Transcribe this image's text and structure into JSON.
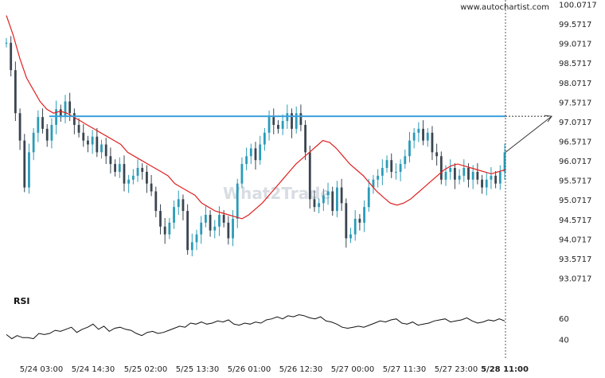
{
  "site_label": "www.autochartist.com",
  "watermark": "What2Trade",
  "colors": {
    "candle": "#2b9bb8",
    "candle_dark": "#3a4550",
    "moving_average": "#e02020",
    "resistance": "#3aa0dc",
    "rsi": "#111111",
    "projection": "#333333"
  },
  "chart_data": {
    "type": "line",
    "price_panel": {
      "ylim": [
        92.9,
        100.3
      ],
      "y_ticks": [
        "100.0717",
        "99.5717",
        "99.0717",
        "98.5717",
        "98.0717",
        "97.5717",
        "97.0717",
        "96.5717",
        "96.0717",
        "95.5717",
        "95.0717",
        "94.5717",
        "94.0717",
        "93.5717",
        "93.0717"
      ],
      "resistance_level": 97.22,
      "price_series": [
        99.1,
        98.4,
        97.3,
        96.6,
        95.4,
        96.3,
        96.8,
        97.2,
        96.9,
        96.6,
        97.0,
        97.4,
        97.2,
        97.6,
        97.3,
        97.0,
        96.8,
        96.6,
        96.5,
        96.7,
        96.3,
        96.5,
        96.2,
        96.0,
        95.8,
        96.0,
        95.5,
        95.6,
        95.7,
        95.9,
        95.8,
        95.5,
        95.3,
        94.8,
        94.4,
        94.2,
        94.5,
        94.9,
        95.1,
        94.8,
        93.8,
        94.0,
        94.2,
        94.5,
        94.7,
        94.3,
        94.4,
        94.7,
        94.5,
        94.1,
        94.6,
        95.5,
        96.0,
        96.2,
        96.4,
        96.1,
        96.5,
        96.8,
        97.2,
        97.0,
        96.9,
        97.1,
        97.3,
        96.9,
        97.3,
        97.0,
        96.3,
        95.1,
        94.9,
        95.0,
        95.2,
        95.3,
        94.8,
        95.4,
        95.0,
        94.1,
        94.2,
        94.6,
        94.5,
        94.9,
        95.4,
        95.6,
        95.7,
        95.9,
        96.1,
        95.8,
        95.8,
        96.0,
        96.2,
        96.6,
        96.8,
        96.9,
        96.6,
        96.8,
        96.3,
        96.2,
        95.6,
        95.8,
        95.9,
        95.6,
        95.7,
        95.9,
        95.6,
        95.8,
        95.6,
        95.4,
        95.6,
        95.7,
        95.5,
        95.8,
        96.3
      ],
      "moving_average": [
        99.8,
        99.3,
        98.7,
        98.2,
        97.9,
        97.6,
        97.4,
        97.3,
        97.35,
        97.3,
        97.2,
        97.1,
        97.0,
        96.9,
        96.8,
        96.7,
        96.6,
        96.5,
        96.3,
        96.2,
        96.1,
        96.0,
        95.9,
        95.8,
        95.7,
        95.5,
        95.4,
        95.3,
        95.2,
        95.0,
        94.9,
        94.8,
        94.75,
        94.7,
        94.65,
        94.6,
        94.7,
        94.85,
        95.0,
        95.2,
        95.4,
        95.6,
        95.8,
        96.0,
        96.15,
        96.3,
        96.45,
        96.6,
        96.55,
        96.4,
        96.2,
        96.0,
        95.85,
        95.7,
        95.5,
        95.3,
        95.15,
        95.0,
        94.95,
        95.0,
        95.1,
        95.25,
        95.4,
        95.55,
        95.7,
        95.85,
        95.95,
        96.0,
        95.95,
        95.9,
        95.85,
        95.8,
        95.75,
        95.8,
        95.85
      ],
      "projection": {
        "from_value": 96.3,
        "to_value": 97.22
      }
    },
    "rsi_panel": {
      "title": "RSI",
      "ylim": [
        30,
        72
      ],
      "y_ticks": [
        "60",
        "40"
      ],
      "values": [
        45,
        41,
        44,
        42,
        42,
        41,
        46,
        45,
        46,
        49,
        48,
        50,
        52,
        47,
        50,
        52,
        55,
        50,
        53,
        48,
        51,
        52,
        50,
        49,
        46,
        44,
        47,
        48,
        46,
        47,
        49,
        51,
        53,
        52,
        56,
        55,
        57,
        55,
        56,
        58,
        57,
        59,
        55,
        54,
        56,
        55,
        57,
        56,
        59,
        60,
        62,
        60,
        63,
        62,
        64,
        63,
        61,
        60,
        62,
        58,
        57,
        55,
        52,
        51,
        52,
        53,
        52,
        54,
        56,
        58,
        57,
        59,
        60,
        56,
        55,
        57,
        54,
        55,
        56,
        58,
        59,
        60,
        57,
        58,
        59,
        61,
        58,
        56,
        57,
        59,
        58,
        60,
        58
      ]
    },
    "x_ticks": [
      "5/24 03:00",
      "5/24 14:30",
      "5/25 02:00",
      "5/25 13:30",
      "5/26 01:00",
      "5/26 12:30",
      "5/27 00:00",
      "5/27 11:30",
      "5/27 23:00",
      "5/28 11:00"
    ],
    "current_marker_label": "5/28 11:00"
  }
}
